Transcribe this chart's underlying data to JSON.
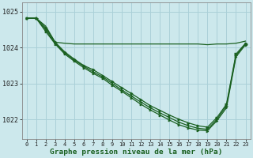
{
  "background_color": "#cce8ec",
  "grid_color": "#aad0d8",
  "line_color": "#1a6020",
  "hours": [
    0,
    1,
    2,
    3,
    4,
    5,
    6,
    7,
    8,
    9,
    10,
    11,
    12,
    13,
    14,
    15,
    16,
    17,
    18,
    19,
    20,
    21,
    22,
    23
  ],
  "line_flat": [
    1024.82,
    1024.82,
    1024.6,
    1024.15,
    1024.12,
    1024.1,
    1024.1,
    1024.1,
    1024.1,
    1024.1,
    1024.1,
    1024.1,
    1024.1,
    1024.1,
    1024.1,
    1024.1,
    1024.1,
    1024.1,
    1024.1,
    1024.08,
    1024.1,
    1024.1,
    1024.12,
    1024.18
  ],
  "line_steep1": [
    1024.82,
    1024.82,
    1024.55,
    1024.15,
    1023.88,
    1023.68,
    1023.5,
    1023.38,
    1023.22,
    1023.05,
    1022.88,
    1022.72,
    1022.55,
    1022.38,
    1022.25,
    1022.12,
    1022.0,
    1021.9,
    1021.82,
    1021.78,
    1022.05,
    1022.42,
    1023.82,
    1024.12
  ],
  "line_steep2": [
    1024.82,
    1024.82,
    1024.5,
    1024.12,
    1023.85,
    1023.65,
    1023.48,
    1023.32,
    1023.18,
    1023.0,
    1022.82,
    1022.65,
    1022.48,
    1022.32,
    1022.18,
    1022.05,
    1021.92,
    1021.82,
    1021.75,
    1021.72,
    1022.0,
    1022.38,
    1023.78,
    1024.1
  ],
  "line_steep3": [
    1024.82,
    1024.82,
    1024.45,
    1024.1,
    1023.82,
    1023.62,
    1023.44,
    1023.28,
    1023.14,
    1022.95,
    1022.78,
    1022.6,
    1022.42,
    1022.26,
    1022.12,
    1021.98,
    1021.85,
    1021.76,
    1021.7,
    1021.68,
    1021.96,
    1022.32,
    1023.74,
    1024.08
  ],
  "ylim_min": 1021.45,
  "ylim_max": 1025.25,
  "yticks": [
    1022,
    1023,
    1024,
    1025
  ],
  "xlabel": "Graphe pression niveau de la mer (hPa)"
}
